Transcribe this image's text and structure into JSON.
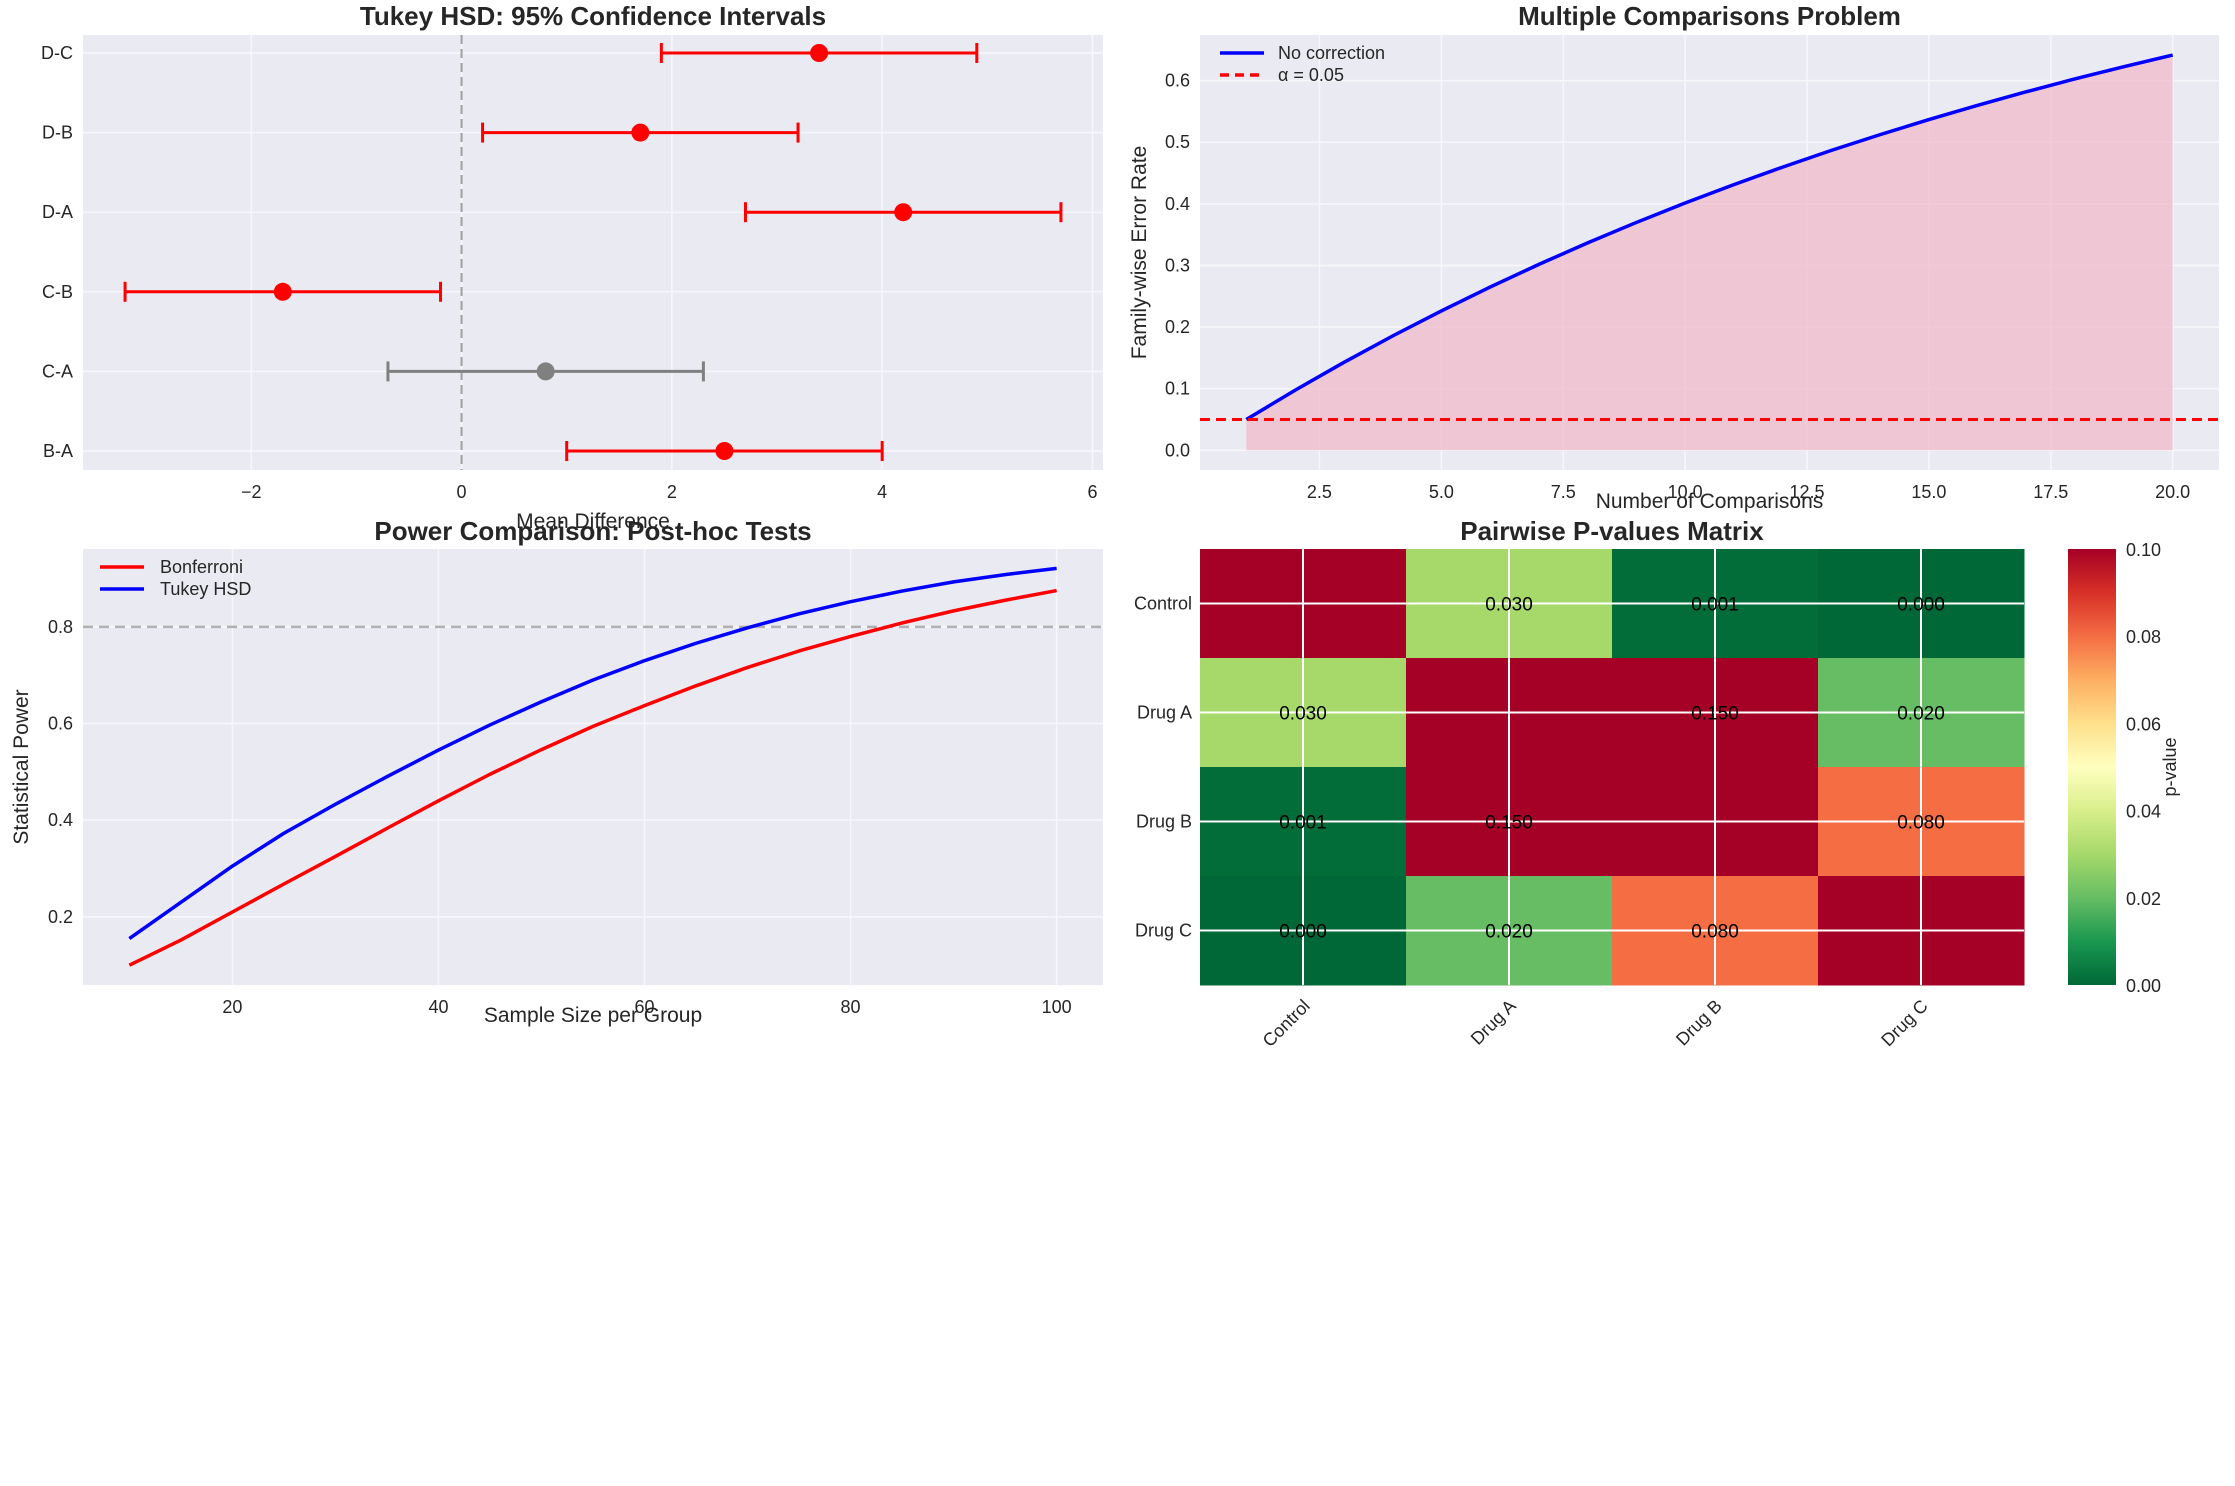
{
  "figure": {
    "background": "#ffffff",
    "axes_facecolor": "#eaeaf2",
    "grid_color": "#f7f7fb"
  },
  "chart_data": [
    {
      "id": "tukey",
      "type": "errorbar",
      "title": "Tukey HSD: 95% Confidence Intervals",
      "xlabel": "Mean Difference",
      "ylabel": "",
      "xlim": [
        -3.6,
        6.1
      ],
      "xticks": [
        -2,
        0,
        2,
        4,
        6
      ],
      "xtick_labels": [
        "−2",
        "0",
        "2",
        "4",
        "6"
      ],
      "reference_line": {
        "x": 0,
        "style": "dashed",
        "color": "#a0a0a0"
      },
      "grid": true,
      "comparisons": [
        {
          "label": "B-A",
          "estimate": 2.5,
          "lower": 1.0,
          "upper": 4.0,
          "significant": true
        },
        {
          "label": "C-A",
          "estimate": 0.8,
          "lower": -0.7,
          "upper": 2.3,
          "significant": false
        },
        {
          "label": "C-B",
          "estimate": -1.7,
          "lower": -3.2,
          "upper": -0.2,
          "significant": true
        },
        {
          "label": "D-A",
          "estimate": 4.2,
          "lower": 2.7,
          "upper": 5.7,
          "significant": true
        },
        {
          "label": "D-B",
          "estimate": 1.7,
          "lower": 0.2,
          "upper": 3.2,
          "significant": true
        },
        {
          "label": "D-C",
          "estimate": 3.4,
          "lower": 1.9,
          "upper": 4.9,
          "significant": true
        }
      ],
      "colors": {
        "significant": "#ff0000",
        "not_significant": "#808080"
      }
    },
    {
      "id": "fwer",
      "type": "area",
      "title": "Multiple Comparisons Problem",
      "xlabel": "Number of Comparisons",
      "ylabel": "Family-wise Error Rate",
      "xlim": [
        0.05,
        20.95
      ],
      "ylim": [
        -0.032,
        0.674
      ],
      "xticks": [
        2.5,
        5.0,
        7.5,
        10.0,
        12.5,
        15.0,
        17.5,
        20.0
      ],
      "xtick_labels": [
        "2.5",
        "5.0",
        "7.5",
        "10.0",
        "12.5",
        "15.0",
        "17.5",
        "20.0"
      ],
      "yticks": [
        0.0,
        0.1,
        0.2,
        0.3,
        0.4,
        0.5,
        0.6
      ],
      "ytick_labels": [
        "0.0",
        "0.1",
        "0.2",
        "0.3",
        "0.4",
        "0.5",
        "0.6"
      ],
      "grid": true,
      "legend_position": "top-left",
      "x": [
        1,
        2,
        3,
        4,
        5,
        6,
        7,
        8,
        9,
        10,
        11,
        12,
        13,
        14,
        15,
        16,
        17,
        18,
        19,
        20
      ],
      "series": [
        {
          "name": "No correction",
          "color": "#0000ff",
          "style": "solid",
          "values": [
            0.05,
            0.0975,
            0.1426,
            0.1855,
            0.2262,
            0.2649,
            0.3017,
            0.3366,
            0.3698,
            0.4013,
            0.4312,
            0.4596,
            0.4867,
            0.5123,
            0.5367,
            0.5599,
            0.5819,
            0.6028,
            0.6226,
            0.6415
          ]
        },
        {
          "name": "α = 0.05",
          "color": "#ff0000",
          "style": "dashed",
          "hline": 0.05
        }
      ],
      "fill_color": "#f0b6c8"
    },
    {
      "id": "power",
      "type": "line",
      "title": "Power Comparison: Post-hoc Tests",
      "xlabel": "Sample Size per Group",
      "ylabel": "Statistical Power",
      "xlim": [
        5.5,
        104.5
      ],
      "ylim": [
        0.059,
        0.961
      ],
      "xticks": [
        20,
        40,
        60,
        80,
        100
      ],
      "xtick_labels": [
        "20",
        "40",
        "60",
        "80",
        "100"
      ],
      "yticks": [
        0.2,
        0.4,
        0.6,
        0.8
      ],
      "ytick_labels": [
        "0.2",
        "0.4",
        "0.6",
        "0.8"
      ],
      "grid": true,
      "legend_position": "top-left",
      "reference_line": {
        "y": 0.8,
        "style": "dashed",
        "color": "#b0b0b0"
      },
      "x": [
        10,
        15,
        20,
        25,
        30,
        35,
        40,
        45,
        50,
        55,
        60,
        65,
        70,
        75,
        80,
        85,
        90,
        95,
        100
      ],
      "series": [
        {
          "name": "Bonferroni",
          "color": "#ff0000",
          "values": [
            0.1,
            0.152,
            0.21,
            0.268,
            0.325,
            0.383,
            0.44,
            0.495,
            0.546,
            0.594,
            0.637,
            0.678,
            0.716,
            0.75,
            0.78,
            0.808,
            0.833,
            0.855,
            0.875
          ]
        },
        {
          "name": "Tukey HSD",
          "color": "#0000ff",
          "values": [
            0.155,
            0.23,
            0.305,
            0.373,
            0.433,
            0.49,
            0.545,
            0.597,
            0.645,
            0.69,
            0.73,
            0.766,
            0.798,
            0.827,
            0.852,
            0.874,
            0.893,
            0.908,
            0.921
          ]
        }
      ]
    },
    {
      "id": "pmatrix",
      "type": "heatmap",
      "title": "Pairwise P-values Matrix",
      "row_labels": [
        "Control",
        "Drug A",
        "Drug B",
        "Drug C"
      ],
      "col_labels": [
        "Control",
        "Drug A",
        "Drug B",
        "Drug C"
      ],
      "values": [
        [
          1.0,
          0.03,
          0.001,
          0.0
        ],
        [
          0.03,
          1.0,
          0.15,
          0.02
        ],
        [
          0.001,
          0.15,
          1.0,
          0.08
        ],
        [
          0.0,
          0.02,
          0.08,
          1.0
        ]
      ],
      "annotations": [
        [
          "",
          "0.030",
          "0.001",
          "0.000"
        ],
        [
          "0.030",
          "",
          "0.150",
          "0.020"
        ],
        [
          "0.001",
          "0.150",
          "",
          "0.080"
        ],
        [
          "0.000",
          "0.020",
          "0.080",
          ""
        ]
      ],
      "colormap": "RdYlGn_r",
      "vmin": 0.0,
      "vmax": 0.1,
      "colorbar": {
        "label": "p-value",
        "ticks": [
          0.0,
          0.02,
          0.04,
          0.06,
          0.08,
          0.1
        ],
        "tick_labels": [
          "0.00",
          "0.02",
          "0.04",
          "0.06",
          "0.08",
          "0.10"
        ]
      }
    }
  ]
}
